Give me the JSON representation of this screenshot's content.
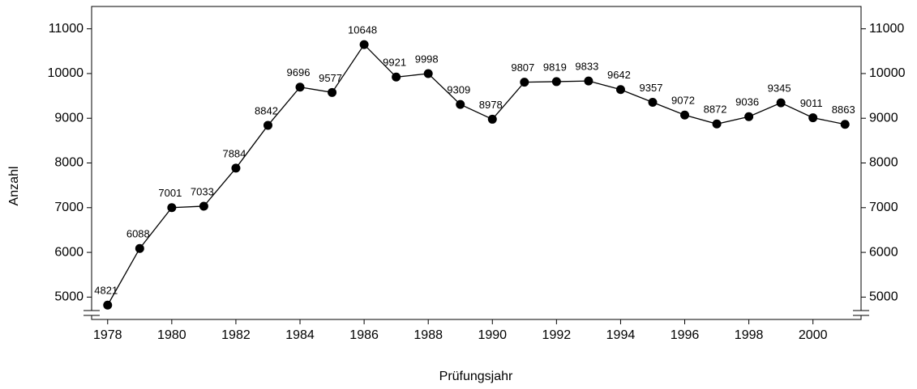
{
  "chart_data": {
    "type": "line",
    "x_label": "Prüfungsjahr",
    "y_label": "Anzahl",
    "x": [
      1978,
      1979,
      1980,
      1981,
      1982,
      1983,
      1984,
      1985,
      1986,
      1987,
      1988,
      1989,
      1990,
      1991,
      1992,
      1993,
      1994,
      1995,
      1996,
      1997,
      1998,
      1999,
      2000,
      2001
    ],
    "series": [
      {
        "color": "#000000",
        "values": [
          4821,
          6088,
          7001,
          7033,
          7884,
          8842,
          9696,
          9577,
          10648,
          9921,
          9998,
          9309,
          8978,
          9807,
          9819,
          9833,
          9642,
          9357,
          9072,
          8872,
          9036,
          9345,
          9011,
          8863
        ]
      }
    ],
    "xlim": [
      1977.5,
      2001.5
    ],
    "xticks": [
      1978,
      1980,
      1982,
      1984,
      1986,
      1988,
      1990,
      1992,
      1994,
      1996,
      1998,
      2000
    ],
    "ylim": [
      4500,
      11500
    ],
    "yticks": [
      5000,
      6000,
      7000,
      8000,
      9000,
      10000,
      11000
    ],
    "y2lim": [
      4500,
      11500
    ],
    "y2ticks": [
      5000,
      6000,
      7000,
      8000,
      9000,
      10000,
      11000
    ]
  }
}
